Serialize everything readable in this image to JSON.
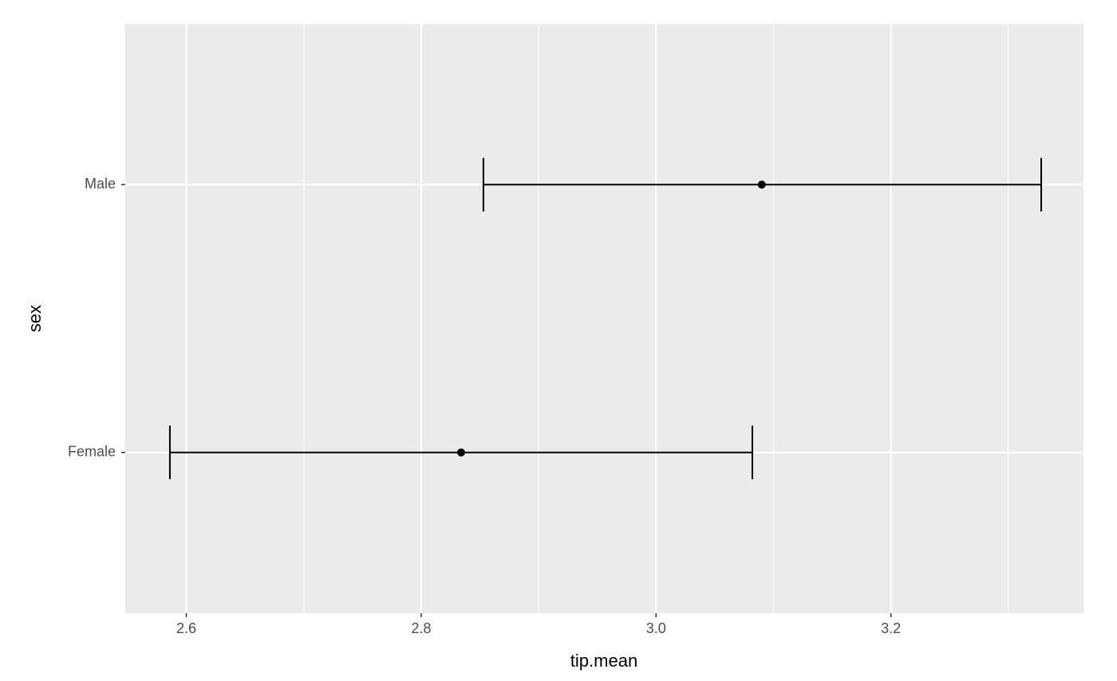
{
  "chart_data": {
    "type": "errorbar",
    "x_label": "tip.mean",
    "y_label": "sex",
    "categories": [
      "Female",
      "Male"
    ],
    "series": [
      {
        "color": "#000000",
        "values": [
          2.834,
          3.09
        ],
        "lower": [
          2.586,
          2.853
        ],
        "upper": [
          3.082,
          3.328
        ]
      }
    ],
    "xlim": [
      2.548,
      3.364
    ],
    "xticks": [
      2.6,
      2.8,
      {
        "value": 3,
        "label": "3.0"
      },
      3.2
    ],
    "xminor": [
      2.7,
      2.9,
      3.1,
      3.3
    ],
    "grid": true
  }
}
